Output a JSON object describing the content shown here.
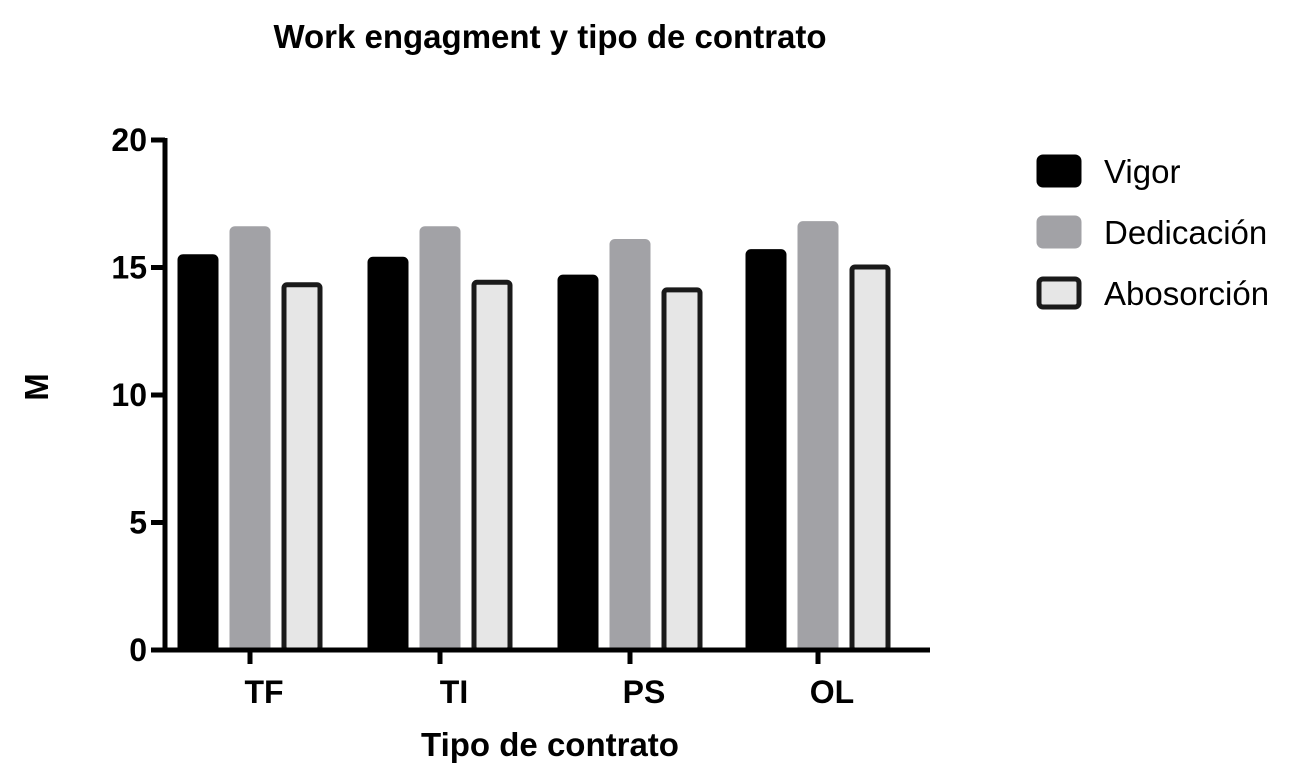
{
  "chart_data": {
    "type": "bar",
    "title": "Work engagment y tipo de contrato",
    "xlabel": "Tipo de contrato",
    "ylabel": "M",
    "categories": [
      "TF",
      "TI",
      "PS",
      "OL"
    ],
    "ylim": [
      0,
      20
    ],
    "yticks": [
      "0",
      "5",
      "10",
      "15",
      "20"
    ],
    "grid": false,
    "legend_position": "right",
    "series": [
      {
        "name": "Vigor",
        "values": [
          15.5,
          15.4,
          14.7,
          15.7
        ],
        "color": "#000000",
        "edge": "#000000"
      },
      {
        "name": "Dedicación",
        "values": [
          16.6,
          16.6,
          16.1,
          16.8
        ],
        "color": "#a2a2a6",
        "edge": "#a2a2a6"
      },
      {
        "name": "Abosorción",
        "values": [
          14.4,
          14.5,
          14.2,
          15.1
        ],
        "color": "#e6e6e6",
        "edge": "#1a1a1a"
      }
    ]
  }
}
